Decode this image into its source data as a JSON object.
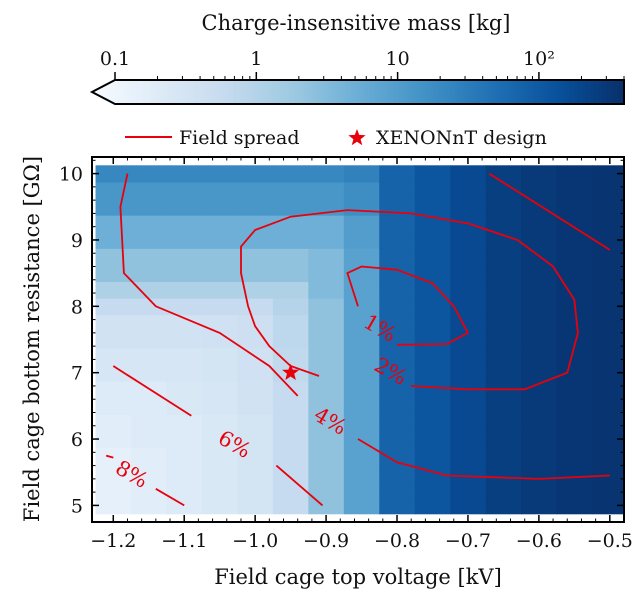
{
  "chart_data": {
    "type": "heatmap",
    "xlabel": "Field cage top voltage [kV]",
    "ylabel": "Field cage bottom resistance [GΩ]",
    "xlim": [
      -1.23,
      -0.48
    ],
    "ylim": [
      4.75,
      10.25
    ],
    "x_ticks": [
      -1.2,
      -1.1,
      -1.0,
      -0.9,
      -0.8,
      -0.7,
      -0.6,
      -0.5
    ],
    "x_tick_labels": [
      "−1.2",
      "−1.1",
      "−1.0",
      "−0.9",
      "−0.8",
      "−0.7",
      "−0.6",
      "−0.5"
    ],
    "y_ticks": [
      5,
      6,
      7,
      8,
      9,
      10
    ],
    "y_tick_labels": [
      "5",
      "6",
      "7",
      "8",
      "9",
      "10"
    ],
    "colorbar": {
      "label": "Charge-insensitive mass [kg]",
      "scale": "log",
      "range": [
        0.1,
        400
      ],
      "ticks": [
        0.1,
        1,
        10,
        100
      ],
      "tick_labels": [
        "0.1",
        "1",
        "10",
        "10²"
      ],
      "extend": "min",
      "colormap": "Blues"
    },
    "grid_x": [
      -1.2,
      -1.15,
      -1.1,
      -1.05,
      -1.0,
      -0.95,
      -0.9,
      -0.85,
      -0.8,
      -0.75,
      -0.7,
      -0.65,
      -0.6,
      -0.55,
      -0.5
    ],
    "grid_y": [
      5.0,
      5.25,
      5.5,
      5.75,
      6.0,
      6.25,
      6.5,
      6.75,
      7.0,
      7.25,
      7.5,
      7.75,
      8.0,
      8.25,
      8.5,
      8.75,
      9.0,
      9.25,
      9.5,
      9.75,
      10.0
    ],
    "mass_kg": [
      [
        0.2,
        0.25,
        0.3,
        0.35,
        0.45,
        0.8,
        3,
        10,
        80,
        120,
        180,
        250,
        300,
        330,
        350
      ],
      [
        0.2,
        0.25,
        0.3,
        0.35,
        0.45,
        0.8,
        3,
        10,
        80,
        120,
        180,
        250,
        300,
        330,
        350
      ],
      [
        0.2,
        0.25,
        0.3,
        0.35,
        0.45,
        0.8,
        3,
        10,
        80,
        120,
        180,
        250,
        300,
        330,
        350
      ],
      [
        0.2,
        0.25,
        0.3,
        0.35,
        0.45,
        0.8,
        3,
        10,
        80,
        120,
        180,
        250,
        300,
        330,
        350
      ],
      [
        0.25,
        0.3,
        0.3,
        0.35,
        0.45,
        0.8,
        3,
        10,
        80,
        120,
        180,
        250,
        300,
        330,
        350
      ],
      [
        0.25,
        0.3,
        0.3,
        0.35,
        0.45,
        0.8,
        3,
        10,
        80,
        120,
        180,
        250,
        300,
        330,
        350
      ],
      [
        0.3,
        0.3,
        0.35,
        0.4,
        0.5,
        0.8,
        3,
        10,
        80,
        120,
        180,
        250,
        300,
        330,
        350
      ],
      [
        0.3,
        0.3,
        0.35,
        0.4,
        0.5,
        0.8,
        3,
        10,
        80,
        120,
        180,
        250,
        300,
        330,
        350
      ],
      [
        0.4,
        0.4,
        0.4,
        0.45,
        0.55,
        0.9,
        3,
        10,
        80,
        120,
        180,
        250,
        300,
        330,
        350
      ],
      [
        0.4,
        0.4,
        0.4,
        0.45,
        0.55,
        0.9,
        3,
        10,
        80,
        120,
        180,
        250,
        300,
        330,
        350
      ],
      [
        0.5,
        0.5,
        0.5,
        0.55,
        0.6,
        1,
        3,
        10,
        80,
        120,
        180,
        250,
        300,
        330,
        350
      ],
      [
        0.5,
        0.5,
        0.5,
        0.55,
        0.6,
        1,
        3,
        10,
        80,
        120,
        180,
        250,
        300,
        330,
        350
      ],
      [
        0.8,
        0.8,
        0.8,
        0.8,
        0.8,
        1.2,
        3,
        10,
        80,
        120,
        180,
        250,
        300,
        330,
        350
      ],
      [
        1.5,
        1.5,
        1.5,
        1.5,
        1.5,
        1.5,
        4,
        10,
        80,
        120,
        180,
        250,
        300,
        330,
        350
      ],
      [
        3,
        3,
        3,
        3,
        3,
        3,
        4,
        10,
        80,
        120,
        180,
        250,
        300,
        330,
        350
      ],
      [
        3,
        3,
        3,
        3,
        3,
        3,
        4,
        10,
        80,
        120,
        180,
        250,
        300,
        330,
        350
      ],
      [
        6,
        6,
        6,
        6,
        6,
        6,
        6,
        12,
        80,
        120,
        180,
        250,
        300,
        330,
        350
      ],
      [
        6,
        6,
        6,
        6,
        6,
        6,
        6,
        12,
        80,
        120,
        180,
        250,
        300,
        330,
        350
      ],
      [
        15,
        15,
        15,
        15,
        15,
        15,
        15,
        20,
        80,
        120,
        180,
        250,
        300,
        330,
        350
      ],
      [
        15,
        15,
        15,
        15,
        15,
        15,
        15,
        20,
        80,
        120,
        180,
        250,
        300,
        330,
        350
      ],
      [
        25,
        25,
        25,
        25,
        25,
        25,
        25,
        30,
        80,
        120,
        180,
        250,
        300,
        330,
        350
      ]
    ],
    "contours": [
      {
        "label": "1%",
        "label_at": [
          -0.825,
          7.65
        ],
        "label_angle": -30,
        "points": [
          [
            -0.855,
            8.0
          ],
          [
            -0.87,
            8.5
          ],
          [
            -0.85,
            8.6
          ],
          [
            -0.8,
            8.55
          ],
          [
            -0.75,
            8.35
          ],
          [
            -0.72,
            8.0
          ],
          [
            -0.7,
            7.6
          ],
          [
            -0.73,
            7.43
          ],
          [
            -0.8,
            7.42
          ]
        ]
      },
      {
        "label": "2%",
        "label_at": [
          -0.81,
          7.0
        ],
        "label_angle": -30,
        "points": [
          [
            -0.91,
            6.95
          ],
          [
            -0.95,
            7.1
          ],
          [
            -0.98,
            7.4
          ],
          [
            -1.0,
            7.7
          ],
          [
            -1.01,
            8.0
          ],
          [
            -1.02,
            8.5
          ],
          [
            -1.02,
            8.9
          ],
          [
            -1.0,
            9.15
          ],
          [
            -0.95,
            9.35
          ],
          [
            -0.87,
            9.45
          ],
          [
            -0.78,
            9.4
          ],
          [
            -0.7,
            9.25
          ],
          [
            -0.63,
            9.0
          ],
          [
            -0.58,
            8.6
          ],
          [
            -0.55,
            8.1
          ],
          [
            -0.545,
            7.6
          ],
          [
            -0.56,
            7.0
          ],
          [
            -0.62,
            6.75
          ],
          [
            -0.7,
            6.75
          ],
          [
            -0.78,
            6.8
          ]
        ]
      },
      {
        "label": "4%",
        "label_at": [
          -0.895,
          6.25
        ],
        "label_angle": -30,
        "points": [
          [
            -1.18,
            10.0
          ],
          [
            -1.19,
            9.5
          ],
          [
            -1.185,
            8.5
          ],
          [
            -1.14,
            8.0
          ],
          [
            -1.05,
            7.6
          ],
          [
            -0.98,
            7.1
          ],
          [
            -0.94,
            6.65
          ]
        ],
        "points2": [
          [
            -0.855,
            6.0
          ],
          [
            -0.8,
            5.65
          ],
          [
            -0.73,
            5.45
          ],
          [
            -0.6,
            5.4
          ],
          [
            -0.5,
            5.45
          ]
        ]
      },
      {
        "label": "4%",
        "label_at": null,
        "label_angle": 0,
        "points": [
          [
            -0.67,
            10.0
          ],
          [
            -0.5,
            8.85
          ]
        ]
      },
      {
        "label": "6%",
        "label_at": [
          -1.03,
          5.9
        ],
        "label_angle": -30,
        "points": [
          [
            -1.2,
            7.1
          ],
          [
            -1.09,
            6.35
          ]
        ],
        "points2": [
          [
            -0.97,
            5.6
          ],
          [
            -0.905,
            5.0
          ]
        ]
      },
      {
        "label": "8%",
        "label_at": [
          -1.175,
          5.45
        ],
        "label_angle": -30,
        "points": [
          [
            -1.2,
            5.72
          ],
          [
            -1.21,
            5.75
          ]
        ],
        "points2": [
          [
            -1.14,
            5.25
          ],
          [
            -1.1,
            5.0
          ]
        ]
      }
    ],
    "series": [
      {
        "name": "Field spread",
        "kind": "contour",
        "color": "#e8000b"
      },
      {
        "name": "XENONnT design",
        "kind": "marker",
        "color": "#e8000b",
        "x": -0.95,
        "y": 7.0
      }
    ],
    "legend_position": "top"
  }
}
